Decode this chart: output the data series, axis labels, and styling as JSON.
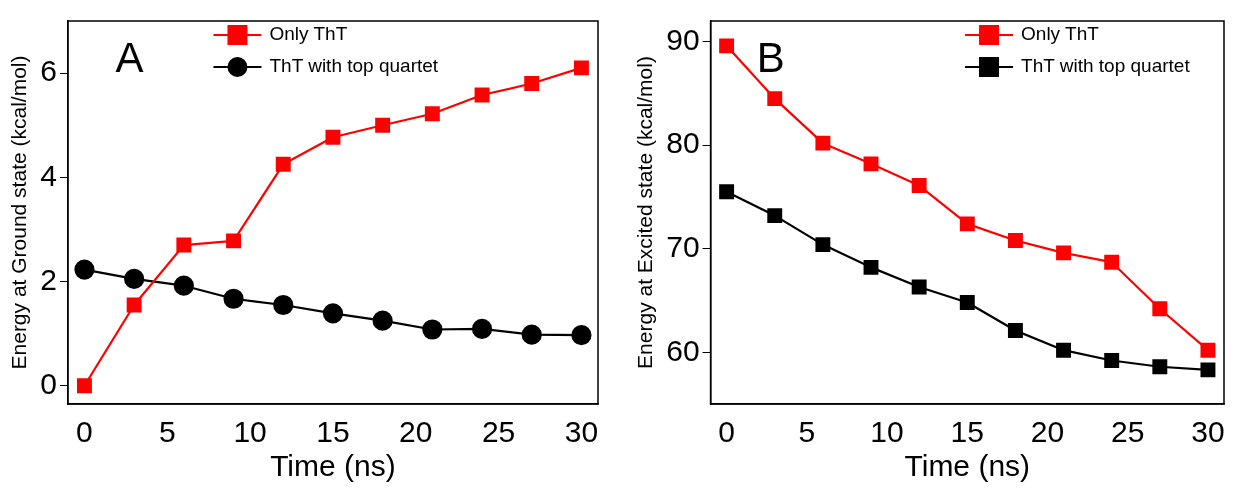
{
  "chart_data": [
    {
      "type": "line",
      "xlabel": "Time (ns)",
      "ylabel": "Energy at Ground state (kcal/mol)",
      "annotations": [
        "A"
      ],
      "legend": "top",
      "xlim": [
        -1,
        31
      ],
      "xticks": [
        0,
        5,
        10,
        15,
        20,
        25,
        30
      ],
      "ylim": [
        -0.35,
        7
      ],
      "yticks": [
        0,
        2,
        4,
        6
      ],
      "grid": false,
      "x": [
        0,
        3,
        6,
        9,
        12,
        15,
        18,
        21,
        24,
        27,
        30
      ],
      "series": [
        {
          "name": "Only ThT",
          "color": "#ff0000",
          "marker": "square",
          "values": [
            0,
            1.55,
            2.7,
            2.78,
            4.25,
            4.77,
            5.0,
            5.22,
            5.58,
            5.8,
            6.1
          ]
        },
        {
          "name": "ThT with top quartet",
          "color": "#000000",
          "marker": "circle",
          "values": [
            2.23,
            2.05,
            1.92,
            1.67,
            1.55,
            1.39,
            1.25,
            1.08,
            1.09,
            0.98,
            0.97
          ]
        }
      ]
    },
    {
      "type": "line",
      "xlabel": "Time (ns)",
      "ylabel": "Energy at Excited state (kcal/mol)",
      "annotations": [
        "B"
      ],
      "legend": "top right",
      "xlim": [
        -1,
        31
      ],
      "xticks": [
        0,
        5,
        10,
        15,
        20,
        25,
        30
      ],
      "ylim": [
        55,
        92
      ],
      "yticks": [
        60,
        70,
        80,
        90
      ],
      "grid": false,
      "x": [
        0,
        3,
        6,
        9,
        12,
        15,
        18,
        21,
        24,
        27,
        30
      ],
      "series": [
        {
          "name": "Only ThT",
          "color": "#ff0000",
          "marker": "square",
          "values": [
            89.6,
            84.5,
            80.2,
            78.2,
            76.1,
            72.4,
            70.8,
            69.6,
            68.7,
            64.2,
            60.2
          ]
        },
        {
          "name": "ThT with top quartet",
          "color": "#000000",
          "marker": "square",
          "values": [
            75.5,
            73.2,
            70.4,
            68.2,
            66.3,
            64.8,
            62.1,
            60.2,
            59.2,
            58.6,
            58.3
          ]
        }
      ]
    }
  ]
}
